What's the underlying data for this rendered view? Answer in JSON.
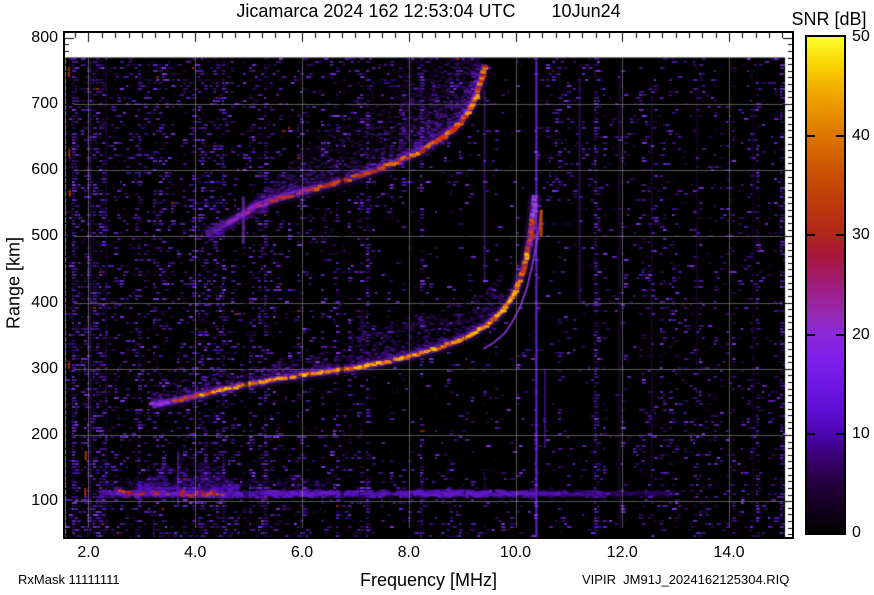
{
  "header": {
    "title": "Jicamarca 2024 162 12:53:04 UTC",
    "date": "10Jun24"
  },
  "colorbar": {
    "label": "SNR [dB]",
    "min": 0,
    "max": 50,
    "tick_labels": [
      "0",
      "10",
      "20",
      "30",
      "40",
      "50"
    ],
    "tick_values": [
      0,
      10,
      20,
      30,
      40,
      50
    ],
    "dash_values": [
      10,
      20,
      30,
      40
    ],
    "gradient": [
      [
        0,
        "#000000"
      ],
      [
        0.05,
        "#120020"
      ],
      [
        0.1,
        "#26003e"
      ],
      [
        0.15,
        "#38016e"
      ],
      [
        0.2,
        "#4c05b0"
      ],
      [
        0.25,
        "#5e0fd4"
      ],
      [
        0.3,
        "#6f17e6"
      ],
      [
        0.35,
        "#7d1fe9"
      ],
      [
        0.4,
        "#8b28da"
      ],
      [
        0.44,
        "#9529b4"
      ],
      [
        0.48,
        "#9d2090"
      ],
      [
        0.52,
        "#a21a64"
      ],
      [
        0.56,
        "#a8183c"
      ],
      [
        0.6,
        "#af251c"
      ],
      [
        0.66,
        "#bb380c"
      ],
      [
        0.72,
        "#c94e04"
      ],
      [
        0.8,
        "#de7500"
      ],
      [
        0.88,
        "#f0a300"
      ],
      [
        0.94,
        "#f9d000"
      ],
      [
        1,
        "#ffff2e"
      ]
    ]
  },
  "axes": {
    "x": {
      "label": "Frequency [MHz]",
      "tick_labels": [
        "2.0",
        "4.0",
        "6.0",
        "8.0",
        "10.0",
        "12.0",
        "14.0"
      ],
      "tick_values": [
        2,
        4,
        6,
        8,
        10,
        12,
        14
      ],
      "min": 1.56,
      "max": 15.18,
      "minor_step": 0.25,
      "grid_values": [
        2,
        4,
        6,
        8,
        10,
        12,
        14
      ],
      "data_max": 15.05
    },
    "y": {
      "label": "Range [km]",
      "tick_labels": [
        "800",
        "700",
        "600",
        "500",
        "400",
        "300",
        "200",
        "100"
      ],
      "tick_values": [
        800,
        700,
        600,
        500,
        400,
        300,
        200,
        100
      ],
      "min": 46,
      "max": 807,
      "minor_step": 10,
      "grid_values": [
        100,
        200,
        300,
        400,
        500,
        600,
        700
      ],
      "data_top": 770
    }
  },
  "footer": {
    "left": "RxMask 11111111",
    "right": "VIPIR  JM91J_2024162125304.RIQ"
  },
  "chart_data": {
    "type": "heatmap",
    "title": "Jicamarca 2024 162 12:53:04 UTC 10Jun24",
    "xlabel": "Frequency [MHz]",
    "ylabel": "Range [km]",
    "zlabel": "SNR [dB]",
    "xlim": [
      1.56,
      15.18
    ],
    "ylim": [
      46,
      807
    ],
    "zlim": [
      0,
      50
    ],
    "grid": true,
    "foF2_mhz": 10.36,
    "traces": [
      {
        "name": "E-region / clutter echo",
        "kind": "band",
        "km_center": 112,
        "km_width": 16,
        "freq_span": [
          2.2,
          13.0
        ],
        "red_core_span": [
          2.5,
          4.5
        ]
      },
      {
        "name": "F-region first hop O-mode",
        "kind": "curve",
        "points": [
          [
            3.18,
            246
          ],
          [
            3.4,
            248
          ],
          [
            3.7,
            253
          ],
          [
            4.1,
            261
          ],
          [
            4.5,
            268
          ],
          [
            4.9,
            275
          ],
          [
            5.3,
            281
          ],
          [
            5.7,
            287
          ],
          [
            6.1,
            292
          ],
          [
            6.5,
            296
          ],
          [
            6.9,
            300
          ],
          [
            7.3,
            306
          ],
          [
            7.7,
            313
          ],
          [
            8.1,
            321
          ],
          [
            8.5,
            330
          ],
          [
            8.8,
            339
          ],
          [
            9.1,
            349
          ],
          [
            9.3,
            358
          ],
          [
            9.5,
            369
          ],
          [
            9.7,
            383
          ],
          [
            9.85,
            398
          ],
          [
            10.0,
            418
          ],
          [
            10.1,
            440
          ],
          [
            10.2,
            466
          ],
          [
            10.27,
            495
          ],
          [
            10.31,
            520
          ],
          [
            10.34,
            545
          ],
          [
            10.36,
            563
          ]
        ]
      },
      {
        "name": "F-region first hop X-mode",
        "kind": "curve",
        "points": [
          [
            9.4,
            330
          ],
          [
            9.6,
            340
          ],
          [
            9.8,
            354
          ],
          [
            9.95,
            372
          ],
          [
            10.1,
            396
          ],
          [
            10.22,
            424
          ],
          [
            10.32,
            458
          ],
          [
            10.4,
            492
          ],
          [
            10.45,
            518
          ],
          [
            10.49,
            540
          ]
        ]
      },
      {
        "name": "F-region second hop",
        "kind": "curve",
        "points": [
          [
            4.2,
            503
          ],
          [
            4.66,
            523
          ],
          [
            5.13,
            545
          ],
          [
            5.59,
            558
          ],
          [
            6.15,
            570
          ],
          [
            6.71,
            582
          ],
          [
            7.27,
            597
          ],
          [
            7.83,
            614
          ],
          [
            8.3,
            632
          ],
          [
            8.67,
            651
          ],
          [
            8.95,
            670
          ],
          [
            9.14,
            692
          ],
          [
            9.27,
            714
          ],
          [
            9.36,
            739
          ],
          [
            9.43,
            760
          ]
        ]
      }
    ]
  },
  "render": {
    "seed": 1337,
    "noise_base": 0.17,
    "speckle_colors": [
      "#1a0530",
      "#2b0a4e",
      "#3c1084",
      "#5216b4",
      "#6a20dc",
      "#8336ee"
    ],
    "bright_stripes": [
      {
        "f": 2.04,
        "w": 2,
        "km": [
          50,
          765
        ],
        "c": "#5a18c0",
        "a": 0.3
      },
      {
        "f": 2.33,
        "w": 2,
        "km": [
          50,
          765
        ],
        "c": "#4a10a8",
        "a": 0.25
      },
      {
        "f": 3.68,
        "w": 2,
        "km": [
          95,
          175
        ],
        "c": "#8a30e8",
        "a": 0.5
      },
      {
        "f": 4.9,
        "w": 3,
        "km": [
          488,
          560
        ],
        "c": "#9a40f0",
        "a": 0.55
      },
      {
        "f": 9.42,
        "w": 2,
        "km": [
          430,
          720
        ],
        "c": "#7a2ae8",
        "a": 0.4
      },
      {
        "f": 10.39,
        "w": 2,
        "km": [
          46,
          765
        ],
        "c": "#8833ff",
        "a": 0.75
      },
      {
        "f": 10.55,
        "w": 2,
        "km": [
          180,
          300
        ],
        "c": "#6a20dc",
        "a": 0.5
      },
      {
        "f": 11.2,
        "w": 2,
        "km": [
          400,
          740
        ],
        "c": "#5a18c0",
        "a": 0.45
      },
      {
        "f": 11.95,
        "w": 2,
        "km": [
          60,
          740
        ],
        "c": "#44108a",
        "a": 0.4
      },
      {
        "f": 12.55,
        "w": 2,
        "km": [
          100,
          730
        ],
        "c": "#3a0c78",
        "a": 0.38
      },
      {
        "f": 13.4,
        "w": 2,
        "km": [
          300,
          720
        ],
        "c": "#340a6a",
        "a": 0.33
      },
      {
        "f": 14.45,
        "w": 2,
        "km": [
          100,
          700
        ],
        "c": "#300860",
        "a": 0.3
      }
    ],
    "dark_stripes": [
      {
        "f": 4.95,
        "w": 5,
        "km": [
          46,
          480
        ],
        "a": 0.5
      },
      {
        "f": 6.75,
        "w": 4,
        "km": [
          46,
          770
        ],
        "a": 0.5
      },
      {
        "f": 9.05,
        "w": 2,
        "km": [
          46,
          520
        ],
        "a": 0.35
      }
    ],
    "left_marks": [
      [
        1.63,
        740,
        756
      ],
      [
        1.64,
        620,
        632
      ],
      [
        1.65,
        560,
        570
      ],
      [
        1.63,
        300,
        312
      ],
      [
        1.95,
        162,
        176
      ],
      [
        1.94,
        108,
        120
      ]
    ],
    "x_mode_hot": {
      "f": 10.47,
      "km": [
        500,
        540
      ]
    }
  }
}
